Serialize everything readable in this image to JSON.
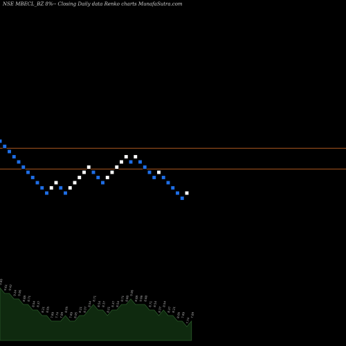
{
  "header": {
    "title": "NSE MBECL_BZ 8%-- Closing Daily data Renko charts MunafaSutra.com"
  },
  "colors": {
    "background": "#000000",
    "brick_up": "#ffffff",
    "brick_down": "#1e6ee6",
    "level_line": "#b05a20",
    "volume_fill": "#0f2a0f",
    "volume_edge": "#2a5a2a"
  },
  "chart_data": {
    "type": "renko",
    "columns": [
      {
        "dir": "down",
        "step": 18
      },
      {
        "dir": "up",
        "step": 1
      },
      {
        "dir": "down",
        "step": 0
      },
      {
        "dir": "up",
        "step": 3
      },
      {
        "dir": "down",
        "step": 1
      },
      {
        "dir": "up",
        "step": 4
      },
      {
        "dir": "down",
        "step": 1
      },
      {
        "dir": "up",
        "step": 0
      },
      {
        "dir": "down",
        "step": 3
      },
      {
        "dir": "up",
        "step": 0
      },
      {
        "dir": "down",
        "step": 5
      },
      {
        "dir": "up",
        "step": 0
      }
    ],
    "bricks": [
      {
        "dir": "down",
        "level": 8
      },
      {
        "dir": "down",
        "level": 7
      },
      {
        "dir": "down",
        "level": 6
      },
      {
        "dir": "down",
        "level": 5
      },
      {
        "dir": "down",
        "level": 4
      },
      {
        "dir": "down",
        "level": 3
      },
      {
        "dir": "down",
        "level": 2
      },
      {
        "dir": "down",
        "level": 1
      },
      {
        "dir": "down",
        "level": 0
      },
      {
        "dir": "down",
        "level": -1
      },
      {
        "dir": "down",
        "level": -2
      },
      {
        "dir": "up",
        "level": -1
      },
      {
        "dir": "up",
        "level": 0
      },
      {
        "dir": "down",
        "level": -1
      },
      {
        "dir": "down",
        "level": -2
      },
      {
        "dir": "up",
        "level": -1
      },
      {
        "dir": "up",
        "level": 0
      },
      {
        "dir": "up",
        "level": 1
      },
      {
        "dir": "up",
        "level": 2
      },
      {
        "dir": "up",
        "level": 3
      },
      {
        "dir": "down",
        "level": 2
      },
      {
        "dir": "down",
        "level": 1
      },
      {
        "dir": "down",
        "level": 0
      },
      {
        "dir": "up",
        "level": 1
      },
      {
        "dir": "up",
        "level": 2
      },
      {
        "dir": "up",
        "level": 3
      },
      {
        "dir": "up",
        "level": 4
      },
      {
        "dir": "up",
        "level": 5
      },
      {
        "dir": "down",
        "level": 4
      },
      {
        "dir": "up",
        "level": 5
      },
      {
        "dir": "down",
        "level": 4
      },
      {
        "dir": "down",
        "level": 3
      },
      {
        "dir": "down",
        "level": 2
      },
      {
        "dir": "down",
        "level": 1
      },
      {
        "dir": "up",
        "level": 2
      },
      {
        "dir": "down",
        "level": 1
      },
      {
        "dir": "down",
        "level": 0
      },
      {
        "dir": "down",
        "level": -1
      },
      {
        "dir": "down",
        "level": -2
      },
      {
        "dir": "down",
        "level": -3
      },
      {
        "dir": "up",
        "level": -2
      }
    ],
    "reference_lines": [
      7,
      3
    ],
    "volume_labels": [
      "9.80",
      "9.61",
      "9.42",
      "9.24",
      "9.06",
      "8.88",
      "8.71",
      "8.54",
      "8.37",
      "8.21",
      "8.05",
      "7.89",
      "7.74",
      "7.89",
      "8.05",
      "7.89",
      "8.05",
      "8.21",
      "8.37",
      "8.54",
      "8.71",
      "8.54",
      "8.37",
      "8.21",
      "8.37",
      "8.54",
      "8.71",
      "8.88",
      "9.06",
      "8.88",
      "9.06",
      "8.88",
      "8.71",
      "8.54",
      "8.37",
      "8.54",
      "8.37",
      "8.21",
      "8.05",
      "7.89",
      "7.74",
      "7.89"
    ],
    "volume_values": [
      8,
      7,
      7,
      6,
      6,
      5,
      5,
      4,
      4,
      3,
      3,
      2,
      2,
      2,
      3,
      2,
      2,
      3,
      3,
      4,
      5,
      4,
      4,
      3,
      4,
      4,
      5,
      5,
      6,
      5,
      5,
      5,
      4,
      4,
      3,
      4,
      3,
      3,
      2,
      2,
      1,
      2
    ]
  }
}
